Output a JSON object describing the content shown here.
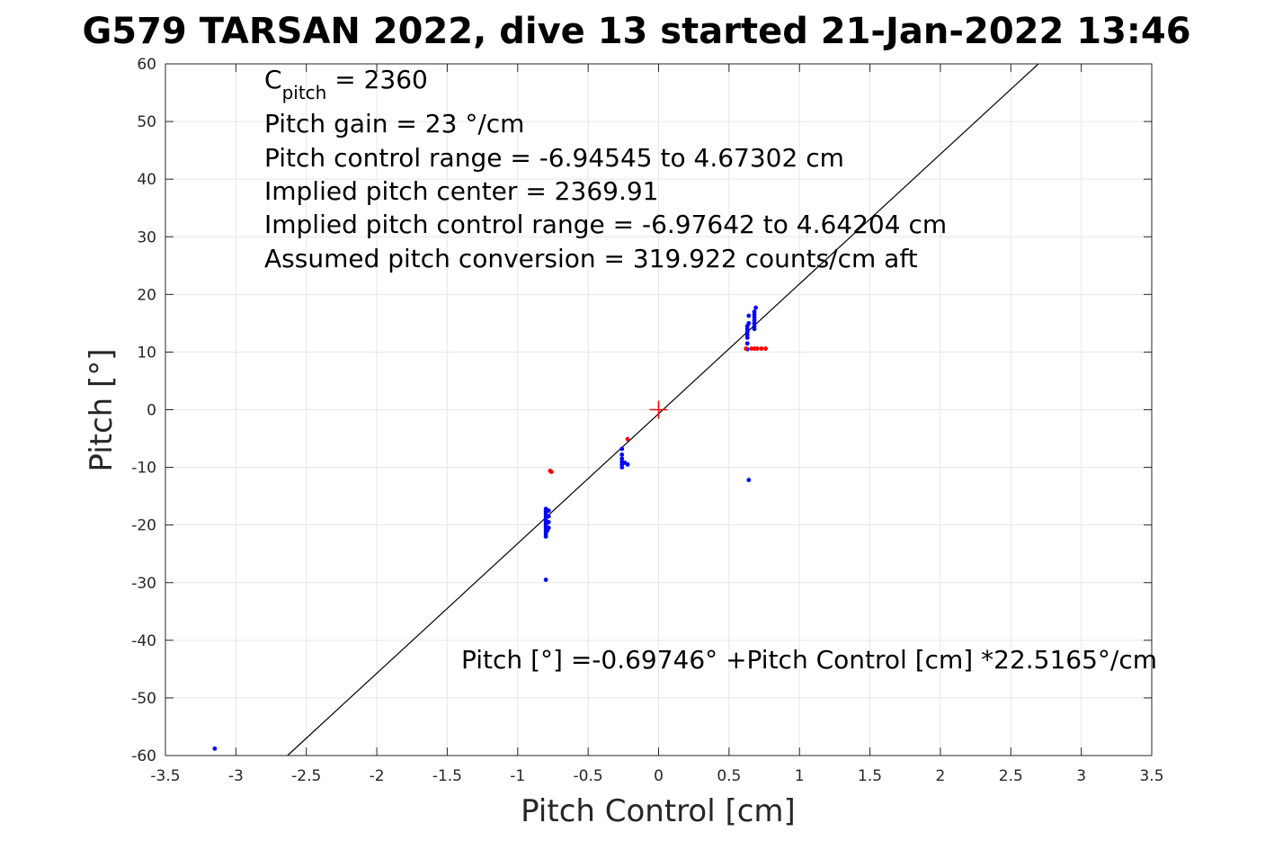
{
  "chart_data": {
    "type": "scatter",
    "title": "G579 TARSAN 2022, dive 13 started 21-Jan-2022 13:46",
    "xlabel": "Pitch Control [cm]",
    "ylabel": "Pitch [°]",
    "xlim": [
      -3.5,
      3.5
    ],
    "ylim": [
      -60,
      60
    ],
    "xticks": [
      -3.5,
      -3,
      -2.5,
      -2,
      -1.5,
      -1,
      -0.5,
      0,
      0.5,
      1,
      1.5,
      2,
      2.5,
      3,
      3.5
    ],
    "xtick_labels": [
      "-3.5",
      "-3",
      "-2.5",
      "-2",
      "-1.5",
      "-1",
      "-0.5",
      "0",
      "0.5",
      "1",
      "1.5",
      "2",
      "2.5",
      "3",
      "3.5"
    ],
    "yticks": [
      -60,
      -50,
      -40,
      -30,
      -20,
      -10,
      0,
      10,
      20,
      30,
      40,
      50,
      60
    ],
    "ytick_labels": [
      "-60",
      "-50",
      "-40",
      "-30",
      "-20",
      "-10",
      "0",
      "10",
      "20",
      "30",
      "40",
      "50",
      "60"
    ],
    "grid": true,
    "colors": {
      "blue_points": "#0000ff",
      "red_points": "#ff0000",
      "fit_line": "#000000",
      "center_marker": "#ff0000",
      "grid": "#e6e6e6"
    },
    "fit": {
      "intercept": -0.69746,
      "slope": 22.5165
    },
    "center_marker": {
      "x": 0,
      "y": 0
    },
    "series": [
      {
        "color": "blue",
        "points": [
          [
            -3.15,
            -58.8
          ],
          [
            -0.8,
            -17.2
          ],
          [
            -0.8,
            -17.6
          ],
          [
            -0.8,
            -18.0
          ],
          [
            -0.8,
            -18.4
          ],
          [
            -0.8,
            -18.8
          ],
          [
            -0.8,
            -19.2
          ],
          [
            -0.8,
            -19.6
          ],
          [
            -0.8,
            -20.0
          ],
          [
            -0.8,
            -20.4
          ],
          [
            -0.8,
            -20.8
          ],
          [
            -0.8,
            -21.2
          ],
          [
            -0.8,
            -21.6
          ],
          [
            -0.8,
            -22.0
          ],
          [
            -0.78,
            -17.5
          ],
          [
            -0.78,
            -18.5
          ],
          [
            -0.78,
            -19.5
          ],
          [
            -0.78,
            -20.5
          ],
          [
            -0.79,
            -21.0
          ],
          [
            -0.8,
            -29.5
          ],
          [
            -0.26,
            -6.8
          ],
          [
            -0.26,
            -7.8
          ],
          [
            -0.26,
            -8.5
          ],
          [
            -0.26,
            -9.0
          ],
          [
            -0.26,
            -9.5
          ],
          [
            -0.26,
            -10.0
          ],
          [
            -0.24,
            -9.2
          ],
          [
            -0.22,
            -9.5
          ],
          [
            0.63,
            10.5
          ],
          [
            0.63,
            11.5
          ],
          [
            0.63,
            12.5
          ],
          [
            0.63,
            13.0
          ],
          [
            0.63,
            13.5
          ],
          [
            0.63,
            14.0
          ],
          [
            0.63,
            14.5
          ],
          [
            0.64,
            15.0
          ],
          [
            0.64,
            16.3
          ],
          [
            0.68,
            14.0
          ],
          [
            0.68,
            14.5
          ],
          [
            0.68,
            15.0
          ],
          [
            0.68,
            15.5
          ],
          [
            0.68,
            16.0
          ],
          [
            0.68,
            16.5
          ],
          [
            0.68,
            17.0
          ],
          [
            0.69,
            17.7
          ],
          [
            0.64,
            -12.2
          ]
        ]
      },
      {
        "color": "red",
        "points": [
          [
            -0.77,
            -10.6
          ],
          [
            -0.76,
            -10.8
          ],
          [
            -0.22,
            -5.1
          ],
          [
            0.62,
            10.6
          ],
          [
            0.66,
            10.6
          ],
          [
            0.68,
            10.6
          ],
          [
            0.7,
            10.6
          ],
          [
            0.73,
            10.6
          ],
          [
            0.76,
            10.6
          ]
        ]
      }
    ],
    "annotations": {
      "c_pitch_main": "C",
      "c_pitch_sub": "pitch",
      "c_pitch_rest": " = 2360",
      "pitch_gain": "Pitch gain = 23 °/cm",
      "pitch_control_range": "Pitch control range = -6.94545 to 4.67302 cm",
      "implied_center": "Implied pitch center = 2369.91",
      "implied_range": "Implied pitch control range = -6.97642 to 4.64204 cm",
      "assumed_conversion": "Assumed pitch conversion = 319.922 counts/cm aft",
      "fit_equation": "Pitch [°] =-0.69746° +Pitch Control [cm] *22.5165°/cm"
    }
  }
}
